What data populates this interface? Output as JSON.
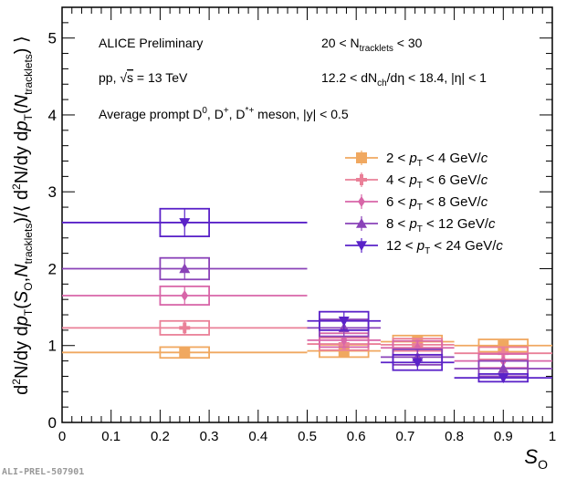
{
  "chart_data": {
    "type": "scatter",
    "xlabel": "S_O",
    "ylabel": "d²N/dy dp_T(S_O,N_tracklets)/⟨d²N/dy dp_T(N_tracklets)⟩",
    "xlim": [
      0,
      1
    ],
    "ylim": [
      0,
      5.4
    ],
    "x_ticks": [
      "0",
      "0.1",
      "0.2",
      "0.3",
      "0.4",
      "0.5",
      "0.6",
      "0.7",
      "0.8",
      "0.9",
      "1"
    ],
    "y_ticks": [
      "0",
      "1",
      "2",
      "3",
      "4",
      "5"
    ],
    "bins": [
      {
        "lo": 0.0,
        "hi": 0.5,
        "center": 0.25
      },
      {
        "lo": 0.5,
        "hi": 0.65,
        "center": 0.575
      },
      {
        "lo": 0.65,
        "hi": 0.8,
        "center": 0.725
      },
      {
        "lo": 0.8,
        "hi": 1.0,
        "center": 0.9
      }
    ],
    "series": [
      {
        "name": "2 < pT < 4 GeV/c",
        "marker": "square",
        "color": "#f0a860",
        "values": [
          0.91,
          0.93,
          1.05,
          1.0
        ],
        "syst": [
          0.07,
          0.08,
          0.08,
          0.08
        ]
      },
      {
        "name": "4 < pT < 6 GeV/c",
        "marker": "cross",
        "color": "#ea8098",
        "values": [
          1.23,
          1.02,
          1.01,
          0.9
        ],
        "syst": [
          0.09,
          0.08,
          0.08,
          0.08
        ]
      },
      {
        "name": "6 < pT < 8 GeV/c",
        "marker": "diamond",
        "color": "#d866a8",
        "values": [
          1.65,
          1.07,
          0.97,
          0.8
        ],
        "syst": [
          0.12,
          0.09,
          0.09,
          0.09
        ]
      },
      {
        "name": "8 < pT < 12 GeV/c",
        "marker": "triangle-up",
        "color": "#8a42b8",
        "values": [
          2.0,
          1.23,
          0.85,
          0.7
        ],
        "syst": [
          0.14,
          0.11,
          0.1,
          0.1
        ]
      },
      {
        "name": "12 < pT < 24 GeV/c",
        "marker": "triangle-down",
        "color": "#5a22c8",
        "values": [
          2.6,
          1.32,
          0.78,
          0.58
        ],
        "syst": [
          0.18,
          0.12,
          0.1,
          0.05
        ]
      }
    ],
    "legend_placement": "center-right",
    "annotations": {
      "experiment": "ALICE Preliminary",
      "system_a": "pp, ",
      "system_b": "s",
      "system_c": " = 13 TeV",
      "particles_a": "Average prompt D",
      "particles_b": ", D",
      "particles_c": ", D",
      "particles_d": " meson, |y| < 0.5",
      "ntrk_a": "20 < N",
      "ntrk_sub": "tracklets",
      "ntrk_b": " < 30",
      "nch_a": "12.2 < dN",
      "nch_sub": "ch",
      "nch_b": "/dη < 18.4, |η| < 1",
      "watermark": "ALI-PREL-507901"
    }
  }
}
